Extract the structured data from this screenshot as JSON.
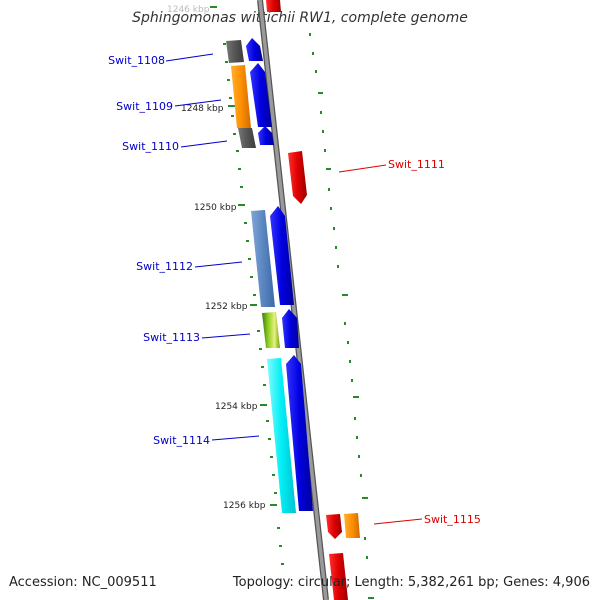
{
  "title": "Sphingomonas wittichii RW1, complete genome",
  "footer": {
    "accession": "Accession: NC_009511",
    "stats": "Topology: circular; Length: 5,382,261 bp; Genes: 4,906"
  },
  "colors": {
    "backbone": "#8a8a8a",
    "minus_strand_gene": "#0000ee",
    "plus_strand_gene": "#ee0000",
    "tick": "#2a8a2a",
    "minus_label": "#0000cc",
    "plus_label": "#dd0000"
  },
  "ticks": [
    {
      "label": "1246 kbp"
    },
    {
      "label": "1248 kbp"
    },
    {
      "label": "1250 kbp"
    },
    {
      "label": "1252 kbp"
    },
    {
      "label": "1254 kbp"
    },
    {
      "label": "1256 kbp"
    }
  ],
  "genes": [
    {
      "name": "Swit_1108",
      "strand": "minus"
    },
    {
      "name": "Swit_1109",
      "strand": "minus"
    },
    {
      "name": "Swit_1110",
      "strand": "minus"
    },
    {
      "name": "Swit_1111",
      "strand": "plus"
    },
    {
      "name": "Swit_1112",
      "strand": "minus"
    },
    {
      "name": "Swit_1113",
      "strand": "minus"
    },
    {
      "name": "Swit_1114",
      "strand": "minus"
    },
    {
      "name": "Swit_1115",
      "strand": "plus"
    }
  ]
}
